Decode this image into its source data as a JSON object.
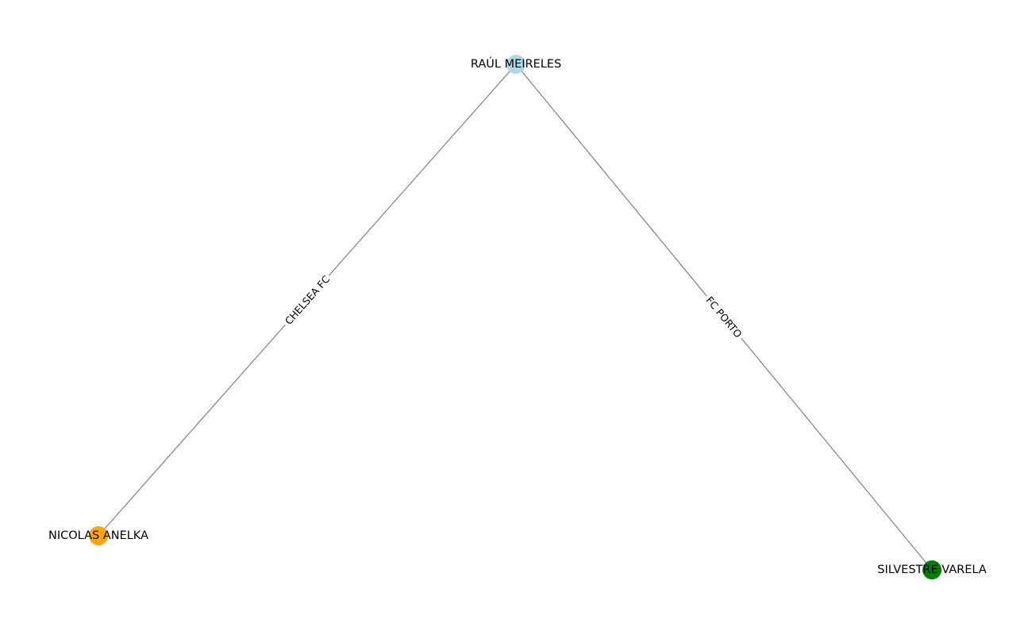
{
  "nodes": [
    {
      "id": "raul",
      "label": "RAÚL MEIRELES",
      "color": "#add8e6"
    },
    {
      "id": "anelka",
      "label": "NICOLAS ANELKA",
      "color": "#ffa500"
    },
    {
      "id": "varela",
      "label": "SILVESTRE VARELA",
      "color": "#008000"
    }
  ],
  "edges": [
    {
      "source": "raul",
      "target": "anelka",
      "label": "CHELSEA FC"
    },
    {
      "source": "raul",
      "target": "varela",
      "label": "FC PORTO"
    }
  ],
  "edge_color": "#808080"
}
